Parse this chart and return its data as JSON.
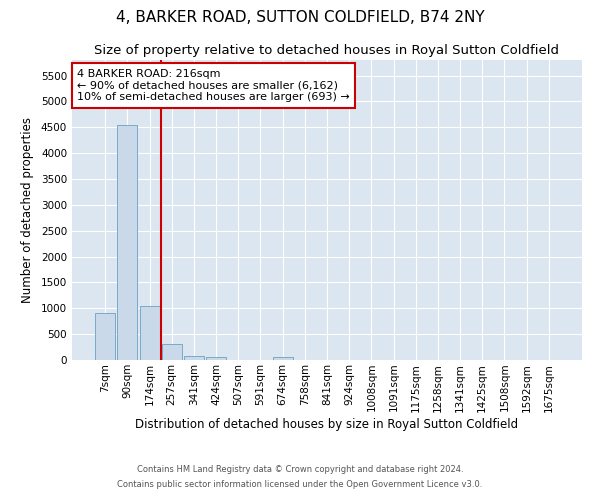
{
  "title": "4, BARKER ROAD, SUTTON COLDFIELD, B74 2NY",
  "subtitle": "Size of property relative to detached houses in Royal Sutton Coldfield",
  "xlabel": "Distribution of detached houses by size in Royal Sutton Coldfield",
  "ylabel": "Number of detached properties",
  "categories": [
    "7sqm",
    "90sqm",
    "174sqm",
    "257sqm",
    "341sqm",
    "424sqm",
    "507sqm",
    "591sqm",
    "674sqm",
    "758sqm",
    "841sqm",
    "924sqm",
    "1008sqm",
    "1091sqm",
    "1175sqm",
    "1258sqm",
    "1341sqm",
    "1425sqm",
    "1508sqm",
    "1592sqm",
    "1675sqm"
  ],
  "values": [
    900,
    4550,
    1050,
    300,
    80,
    60,
    0,
    0,
    60,
    0,
    0,
    0,
    0,
    0,
    0,
    0,
    0,
    0,
    0,
    0,
    0
  ],
  "bar_color": "#c9d9ea",
  "bar_edge_color": "#7aaac8",
  "annotation_text": "4 BARKER ROAD: 216sqm\n← 90% of detached houses are smaller (6,162)\n10% of semi-detached houses are larger (693) →",
  "vline_index": 2.5,
  "vline_color": "#cc0000",
  "annotation_box_color": "#ffffff",
  "annotation_box_edge": "#cc0000",
  "ylim": [
    0,
    5800
  ],
  "yticks": [
    0,
    500,
    1000,
    1500,
    2000,
    2500,
    3000,
    3500,
    4000,
    4500,
    5000,
    5500
  ],
  "title_fontsize": 11,
  "subtitle_fontsize": 9.5,
  "xlabel_fontsize": 8.5,
  "ylabel_fontsize": 8.5,
  "tick_fontsize": 7.5,
  "footer_line1": "Contains HM Land Registry data © Crown copyright and database right 2024.",
  "footer_line2": "Contains public sector information licensed under the Open Government Licence v3.0.",
  "bg_color": "#dce6f0",
  "fig_bg_color": "#ffffff",
  "grid_color": "#ffffff"
}
